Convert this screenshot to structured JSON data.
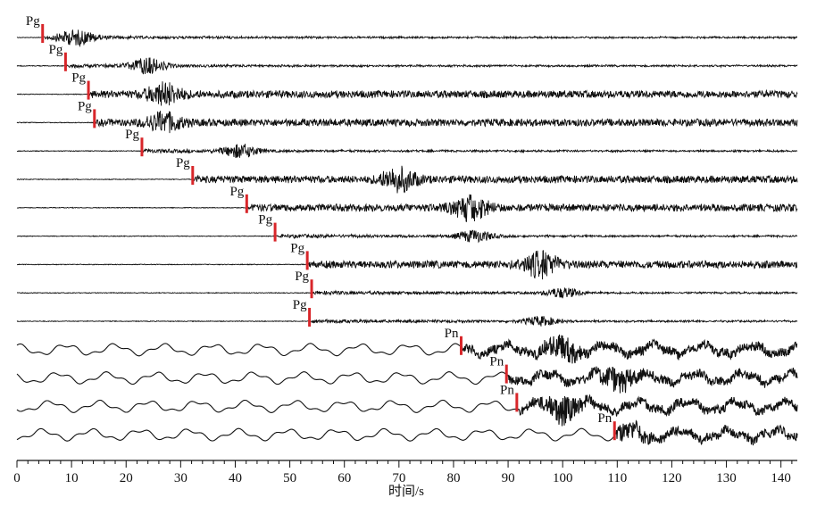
{
  "chart_data": {
    "type": "line",
    "xlabel": "时间/s",
    "xlim": [
      0,
      143
    ],
    "x_ticks": [
      0,
      10,
      20,
      30,
      40,
      50,
      60,
      70,
      80,
      90,
      100,
      110,
      120,
      130,
      140
    ],
    "pick_color": "#d8262a",
    "trace_color": "#111111",
    "traces": [
      {
        "phase": "Pg",
        "pick_time": 4.7,
        "burst_time": 11,
        "burst_amp": 9,
        "style": "quiet"
      },
      {
        "phase": "Pg",
        "pick_time": 8.9,
        "burst_time": 24,
        "burst_amp": 11,
        "style": "quiet"
      },
      {
        "phase": "Pg",
        "pick_time": 13.1,
        "burst_time": 27,
        "burst_amp": 11,
        "style": "active"
      },
      {
        "phase": "Pg",
        "pick_time": 14.2,
        "burst_time": 27,
        "burst_amp": 10,
        "style": "active"
      },
      {
        "phase": "Pg",
        "pick_time": 22.9,
        "burst_time": 41,
        "burst_amp": 10,
        "style": "quiet"
      },
      {
        "phase": "Pg",
        "pick_time": 32.2,
        "burst_time": 70,
        "burst_amp": 12,
        "style": "active"
      },
      {
        "phase": "Pg",
        "pick_time": 42.1,
        "burst_time": 83,
        "burst_amp": 13,
        "style": "active"
      },
      {
        "phase": "Pg",
        "pick_time": 47.3,
        "burst_time": 84,
        "burst_amp": 12,
        "style": "quiet"
      },
      {
        "phase": "Pg",
        "pick_time": 53.2,
        "burst_time": 96,
        "burst_amp": 13,
        "style": "active"
      },
      {
        "phase": "Pg",
        "pick_time": 54.0,
        "burst_time": 100,
        "burst_amp": 11,
        "style": "quiet"
      },
      {
        "phase": "Pg",
        "pick_time": 53.6,
        "burst_time": 96,
        "burst_amp": 9,
        "style": "quiet"
      },
      {
        "phase": "Pn",
        "pick_time": 81.4,
        "burst_time": 100,
        "burst_amp": 10,
        "style": "wavy"
      },
      {
        "phase": "Pn",
        "pick_time": 89.7,
        "burst_time": 110,
        "burst_amp": 10,
        "style": "wavy"
      },
      {
        "phase": "Pn",
        "pick_time": 91.6,
        "burst_time": 100,
        "burst_amp": 12,
        "style": "wavy"
      },
      {
        "phase": "Pn",
        "pick_time": 109.5,
        "burst_time": 112,
        "burst_amp": 7,
        "style": "wavy"
      }
    ]
  }
}
